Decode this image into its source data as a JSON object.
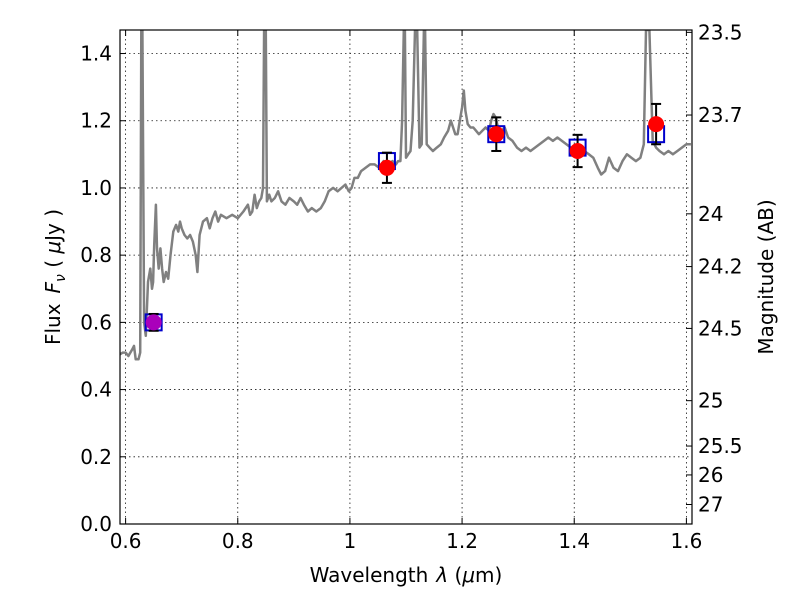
{
  "chart_data": {
    "type": "line",
    "xlabel_text": "Wavelength",
    "xlabel_sym": "λ",
    "xlabel_unit_open": " (",
    "xlabel_unit_mu": "μ",
    "xlabel_unit_close": "m)",
    "ylabel_flux": "Flux",
    "ylabel_F": "F",
    "ylabel_nu": "ν",
    "ylabel_open": " ( ",
    "ylabel_mu": "μ",
    "ylabel_unit": "Jy )",
    "ylabel_right": "Magnitude (AB)",
    "xlim": [
      0.59,
      1.61
    ],
    "ylim": [
      0.0,
      1.47
    ],
    "grid": true,
    "x_ticks": [
      {
        "value": 0.6,
        "label": "0.6"
      },
      {
        "value": 0.8,
        "label": "0.8"
      },
      {
        "value": 1.0,
        "label": "1"
      },
      {
        "value": 1.2,
        "label": "1.2"
      },
      {
        "value": 1.4,
        "label": "1.4"
      },
      {
        "value": 1.6,
        "label": "1.6"
      }
    ],
    "y_ticks": [
      {
        "value": 0.0,
        "label": "0.0"
      },
      {
        "value": 0.2,
        "label": "0.2"
      },
      {
        "value": 0.4,
        "label": "0.4"
      },
      {
        "value": 0.6,
        "label": "0.6"
      },
      {
        "value": 0.8,
        "label": "0.8"
      },
      {
        "value": 1.0,
        "label": "1.0"
      },
      {
        "value": 1.2,
        "label": "1.2"
      },
      {
        "value": 1.4,
        "label": "1.4"
      }
    ],
    "right_ticks": [
      {
        "flux": 1.463,
        "label": "23.5"
      },
      {
        "flux": 1.217,
        "label": "23.7"
      },
      {
        "flux": 0.923,
        "label": "24"
      },
      {
        "flux": 0.766,
        "label": "24.2"
      },
      {
        "flux": 0.582,
        "label": "24.5"
      },
      {
        "flux": 0.367,
        "label": "25"
      },
      {
        "flux": 0.232,
        "label": "25.5"
      },
      {
        "flux": 0.146,
        "label": "26"
      },
      {
        "flux": 0.058,
        "label": "27"
      }
    ],
    "series": [
      {
        "kind": "model_spectrum",
        "color": "#808080",
        "points": [
          [
            0.585,
            0.5
          ],
          [
            0.595,
            0.51
          ],
          [
            0.6,
            0.51
          ],
          [
            0.605,
            0.5
          ],
          [
            0.612,
            0.52
          ],
          [
            0.615,
            0.53
          ],
          [
            0.618,
            0.49
          ],
          [
            0.623,
            0.49
          ],
          [
            0.626,
            0.51
          ],
          [
            0.628,
            1.47
          ],
          [
            0.63,
            1.47
          ],
          [
            0.633,
            0.6
          ],
          [
            0.636,
            0.56
          ],
          [
            0.64,
            0.72
          ],
          [
            0.644,
            0.76
          ],
          [
            0.647,
            0.7
          ],
          [
            0.649,
            0.72
          ],
          [
            0.651,
            0.83
          ],
          [
            0.654,
            0.95
          ],
          [
            0.656,
            0.82
          ],
          [
            0.659,
            0.76
          ],
          [
            0.662,
            0.82
          ],
          [
            0.665,
            0.76
          ],
          [
            0.668,
            0.72
          ],
          [
            0.672,
            0.75
          ],
          [
            0.676,
            0.73
          ],
          [
            0.68,
            0.8
          ],
          [
            0.685,
            0.87
          ],
          [
            0.69,
            0.89
          ],
          [
            0.694,
            0.87
          ],
          [
            0.697,
            0.9
          ],
          [
            0.7,
            0.88
          ],
          [
            0.705,
            0.86
          ],
          [
            0.71,
            0.85
          ],
          [
            0.715,
            0.86
          ],
          [
            0.72,
            0.84
          ],
          [
            0.725,
            0.8
          ],
          [
            0.728,
            0.75
          ],
          [
            0.732,
            0.86
          ],
          [
            0.738,
            0.9
          ],
          [
            0.745,
            0.91
          ],
          [
            0.75,
            0.88
          ],
          [
            0.755,
            0.91
          ],
          [
            0.76,
            0.93
          ],
          [
            0.765,
            0.9
          ],
          [
            0.77,
            0.92
          ],
          [
            0.78,
            0.91
          ],
          [
            0.79,
            0.92
          ],
          [
            0.8,
            0.91
          ],
          [
            0.81,
            0.93
          ],
          [
            0.818,
            0.95
          ],
          [
            0.822,
            0.92
          ],
          [
            0.826,
            0.93
          ],
          [
            0.83,
            0.98
          ],
          [
            0.834,
            0.94
          ],
          [
            0.838,
            0.96
          ],
          [
            0.842,
            0.97
          ],
          [
            0.845,
            1.0
          ],
          [
            0.847,
            1.47
          ],
          [
            0.85,
            1.47
          ],
          [
            0.852,
            0.96
          ],
          [
            0.856,
            0.98
          ],
          [
            0.86,
            0.96
          ],
          [
            0.866,
            0.97
          ],
          [
            0.872,
            0.99
          ],
          [
            0.878,
            0.96
          ],
          [
            0.885,
            0.95
          ],
          [
            0.892,
            0.97
          ],
          [
            0.9,
            0.96
          ],
          [
            0.906,
            0.95
          ],
          [
            0.912,
            0.97
          ],
          [
            0.918,
            0.95
          ],
          [
            0.925,
            0.93
          ],
          [
            0.932,
            0.94
          ],
          [
            0.94,
            0.93
          ],
          [
            0.948,
            0.94
          ],
          [
            0.955,
            0.96
          ],
          [
            0.962,
            0.99
          ],
          [
            0.97,
            1.0
          ],
          [
            0.978,
            0.99
          ],
          [
            0.985,
            1.0
          ],
          [
            0.992,
            1.01
          ],
          [
            0.998,
            0.99
          ],
          [
            1.003,
            1.0
          ],
          [
            1.008,
            1.03
          ],
          [
            1.014,
            1.03
          ],
          [
            1.02,
            1.05
          ],
          [
            1.028,
            1.06
          ],
          [
            1.036,
            1.07
          ],
          [
            1.044,
            1.07
          ],
          [
            1.052,
            1.06
          ],
          [
            1.06,
            1.08
          ],
          [
            1.068,
            1.07
          ],
          [
            1.076,
            1.08
          ],
          [
            1.082,
            1.07
          ],
          [
            1.086,
            1.08
          ],
          [
            1.09,
            1.08
          ],
          [
            1.093,
            1.2
          ],
          [
            1.096,
            1.47
          ],
          [
            1.098,
            1.47
          ],
          [
            1.1,
            1.09
          ],
          [
            1.104,
            1.1
          ],
          [
            1.108,
            1.11
          ],
          [
            1.112,
            1.2
          ],
          [
            1.116,
            1.47
          ],
          [
            1.12,
            1.47
          ],
          [
            1.124,
            1.12
          ],
          [
            1.128,
            1.13
          ],
          [
            1.132,
            1.47
          ],
          [
            1.134,
            1.47
          ],
          [
            1.137,
            1.13
          ],
          [
            1.142,
            1.12
          ],
          [
            1.148,
            1.11
          ],
          [
            1.155,
            1.12
          ],
          [
            1.162,
            1.13
          ],
          [
            1.168,
            1.15
          ],
          [
            1.175,
            1.17
          ],
          [
            1.18,
            1.2
          ],
          [
            1.184,
            1.18
          ],
          [
            1.188,
            1.16
          ],
          [
            1.192,
            1.16
          ],
          [
            1.196,
            1.2
          ],
          [
            1.2,
            1.24
          ],
          [
            1.203,
            1.29
          ],
          [
            1.206,
            1.23
          ],
          [
            1.21,
            1.19
          ],
          [
            1.215,
            1.18
          ],
          [
            1.22,
            1.18
          ],
          [
            1.225,
            1.17
          ],
          [
            1.23,
            1.16
          ],
          [
            1.236,
            1.17
          ],
          [
            1.242,
            1.18
          ],
          [
            1.248,
            1.17
          ],
          [
            1.252,
            1.2
          ],
          [
            1.256,
            1.22
          ],
          [
            1.26,
            1.21
          ],
          [
            1.264,
            1.18
          ],
          [
            1.27,
            1.17
          ],
          [
            1.276,
            1.18
          ],
          [
            1.282,
            1.15
          ],
          [
            1.29,
            1.14
          ],
          [
            1.298,
            1.12
          ],
          [
            1.306,
            1.11
          ],
          [
            1.314,
            1.12
          ],
          [
            1.322,
            1.11
          ],
          [
            1.33,
            1.12
          ],
          [
            1.338,
            1.13
          ],
          [
            1.346,
            1.14
          ],
          [
            1.354,
            1.15
          ],
          [
            1.362,
            1.14
          ],
          [
            1.37,
            1.15
          ],
          [
            1.378,
            1.14
          ],
          [
            1.386,
            1.13
          ],
          [
            1.394,
            1.12
          ],
          [
            1.402,
            1.11
          ],
          [
            1.41,
            1.12
          ],
          [
            1.418,
            1.11
          ],
          [
            1.426,
            1.1
          ],
          [
            1.434,
            1.09
          ],
          [
            1.442,
            1.06
          ],
          [
            1.448,
            1.04
          ],
          [
            1.455,
            1.05
          ],
          [
            1.462,
            1.09
          ],
          [
            1.47,
            1.06
          ],
          [
            1.478,
            1.05
          ],
          [
            1.486,
            1.08
          ],
          [
            1.494,
            1.1
          ],
          [
            1.502,
            1.09
          ],
          [
            1.51,
            1.08
          ],
          [
            1.518,
            1.09
          ],
          [
            1.524,
            1.13
          ],
          [
            1.528,
            1.47
          ],
          [
            1.534,
            1.47
          ],
          [
            1.54,
            1.14
          ],
          [
            1.546,
            1.12
          ],
          [
            1.552,
            1.11
          ],
          [
            1.56,
            1.1
          ],
          [
            1.568,
            1.11
          ],
          [
            1.576,
            1.1
          ],
          [
            1.584,
            1.11
          ],
          [
            1.592,
            1.12
          ],
          [
            1.6,
            1.13
          ],
          [
            1.608,
            1.13
          ]
        ]
      }
    ],
    "model_photometry": {
      "marker": "open-square",
      "color": "#0000cc",
      "points": [
        [
          0.65,
          0.6
        ],
        [
          1.066,
          1.08
        ],
        [
          1.261,
          1.16
        ],
        [
          1.406,
          1.12
        ],
        [
          1.546,
          1.16
        ]
      ]
    },
    "observed_photometry": {
      "marker": "filled-circle",
      "color": "#ff0000",
      "highlight_color": "#aa00bb",
      "points": [
        {
          "x": 0.65,
          "y": 0.6,
          "err": 0.025,
          "highlight": true
        },
        {
          "x": 1.066,
          "y": 1.06,
          "err": 0.045
        },
        {
          "x": 1.261,
          "y": 1.16,
          "err": 0.05
        },
        {
          "x": 1.406,
          "y": 1.11,
          "err": 0.048
        },
        {
          "x": 1.546,
          "y": 1.19,
          "err": 0.06
        }
      ]
    }
  }
}
